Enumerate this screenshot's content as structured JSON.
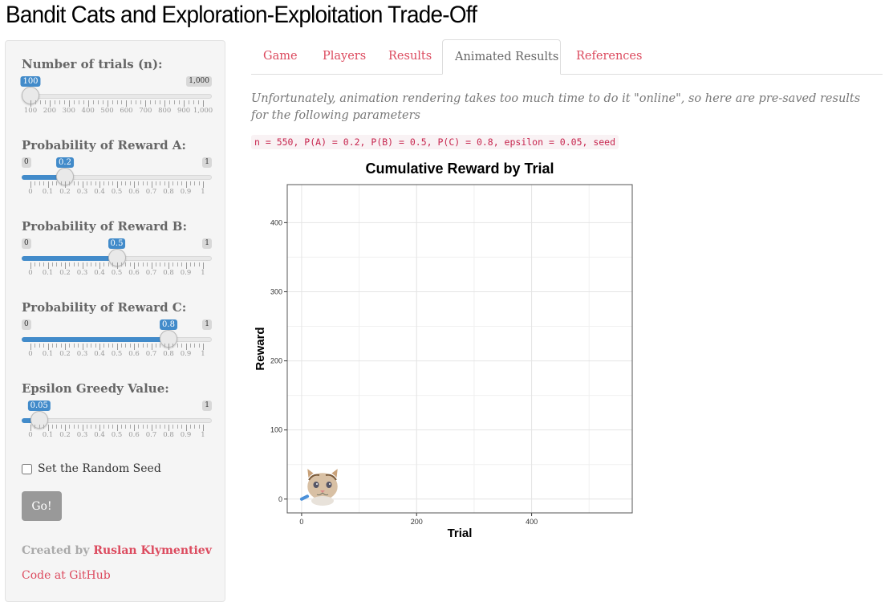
{
  "app": {
    "title": "Bandit Cats and Exploration-Exploitation Trade-Off"
  },
  "sidebar": {
    "trials": {
      "label": "Number of trials (n):",
      "min": "100",
      "max": "1,000",
      "value": "100",
      "fraction": 0,
      "tick_labels": [
        "100",
        "200",
        "300",
        "400",
        "500",
        "600",
        "700",
        "800",
        "900",
        "1,000"
      ]
    },
    "prob_a": {
      "label": "Probability of Reward A:",
      "min": "0",
      "max": "1",
      "value": "0.2",
      "fraction": 0.2,
      "tick_labels": [
        "0",
        "0.1",
        "0.2",
        "0.3",
        "0.4",
        "0.5",
        "0.6",
        "0.7",
        "0.8",
        "0.9",
        "1"
      ]
    },
    "prob_b": {
      "label": "Probability of Reward B:",
      "min": "0",
      "max": "1",
      "value": "0.5",
      "fraction": 0.5,
      "tick_labels": [
        "0",
        "0.1",
        "0.2",
        "0.3",
        "0.4",
        "0.5",
        "0.6",
        "0.7",
        "0.8",
        "0.9",
        "1"
      ]
    },
    "prob_c": {
      "label": "Probability of Reward C:",
      "min": "0",
      "max": "1",
      "value": "0.8",
      "fraction": 0.8,
      "tick_labels": [
        "0",
        "0.1",
        "0.2",
        "0.3",
        "0.4",
        "0.5",
        "0.6",
        "0.7",
        "0.8",
        "0.9",
        "1"
      ]
    },
    "epsilon": {
      "label": "Epsilon Greedy Value:",
      "min": "0",
      "max": "1",
      "value": "0.05",
      "fraction": 0.05,
      "tick_labels": [
        "0",
        "0.1",
        "0.2",
        "0.3",
        "0.4",
        "0.5",
        "0.6",
        "0.7",
        "0.8",
        "0.9",
        "1"
      ]
    },
    "seed_label": "Set the Random Seed",
    "seed_checked": false,
    "go_label": "Go!",
    "credit_prefix": "Created by",
    "author": "Ruslan Klymentiev",
    "github_link": "Code at GitHub"
  },
  "tabs": [
    {
      "label": "Game",
      "active": false
    },
    {
      "label": "Players",
      "active": false
    },
    {
      "label": "Results",
      "active": false
    },
    {
      "label": "Animated Results",
      "active": true
    },
    {
      "label": "References",
      "active": false
    }
  ],
  "main": {
    "note": "Unfortunately, animation rendering takes too much time to do it \"online\", so here are pre-saved results for the following parameters",
    "params_code": "n = 550, P(A) = 0.2, P(B) = 0.5, P(C) = 0.8, epsilon = 0.05, seed"
  },
  "chart_data": {
    "type": "line",
    "title": "Cumulative Reward by Trial",
    "xlabel": "Trial",
    "ylabel": "Reward",
    "xlim": [
      -25,
      575
    ],
    "ylim": [
      -20,
      455
    ],
    "x_ticks": [
      0,
      200,
      400
    ],
    "y_ticks": [
      0,
      100,
      200,
      300,
      400
    ],
    "grid": true,
    "series": [
      {
        "color": "#4a90d9",
        "x": [
          0,
          5,
          10
        ],
        "y": [
          0,
          2,
          4
        ]
      }
    ],
    "marker": "cat-image"
  },
  "colors": {
    "accent": "#dc4a5e",
    "slider": "#428bca",
    "muted": "#999999"
  }
}
